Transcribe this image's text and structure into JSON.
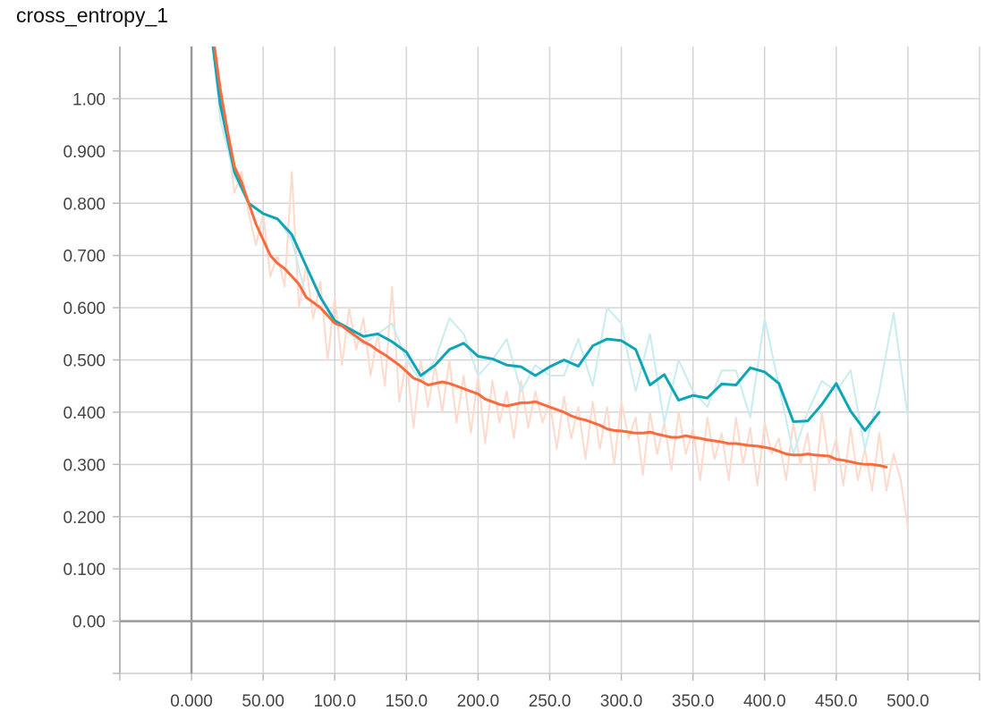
{
  "chart_data": {
    "type": "line",
    "title": "cross_entropy_1",
    "xlabel": "",
    "ylabel": "",
    "xlim": [
      -50,
      550
    ],
    "ylim": [
      -0.1,
      1.1
    ],
    "grid": true,
    "legend": "none",
    "x_ticks": [
      {
        "v": 0,
        "label": "0.000"
      },
      {
        "v": 50,
        "label": "50.00"
      },
      {
        "v": 100,
        "label": "100.0"
      },
      {
        "v": 150,
        "label": "150.0"
      },
      {
        "v": 200,
        "label": "200.0"
      },
      {
        "v": 250,
        "label": "250.0"
      },
      {
        "v": 300,
        "label": "300.0"
      },
      {
        "v": 350,
        "label": "350.0"
      },
      {
        "v": 400,
        "label": "400.0"
      },
      {
        "v": 450,
        "label": "450.0"
      },
      {
        "v": 500,
        "label": "500.0"
      }
    ],
    "y_ticks": [
      {
        "v": 0.0,
        "label": "0.00"
      },
      {
        "v": 0.1,
        "label": "0.100"
      },
      {
        "v": 0.2,
        "label": "0.200"
      },
      {
        "v": 0.3,
        "label": "0.300"
      },
      {
        "v": 0.4,
        "label": "0.400"
      },
      {
        "v": 0.5,
        "label": "0.500"
      },
      {
        "v": 0.6,
        "label": "0.600"
      },
      {
        "v": 0.7,
        "label": "0.700"
      },
      {
        "v": 0.8,
        "label": "0.800"
      },
      {
        "v": 0.9,
        "label": "0.900"
      },
      {
        "v": 1.0,
        "label": "1.00"
      }
    ],
    "series": [
      {
        "role": "orange-raw",
        "color": "#ffd9cc",
        "width": 2,
        "x": [
          15,
          20,
          25,
          30,
          35,
          40,
          45,
          50,
          55,
          60,
          65,
          70,
          75,
          80,
          85,
          90,
          95,
          100,
          105,
          110,
          115,
          120,
          125,
          130,
          135,
          140,
          145,
          150,
          155,
          160,
          165,
          170,
          175,
          180,
          185,
          190,
          195,
          200,
          205,
          210,
          215,
          220,
          225,
          230,
          235,
          240,
          245,
          250,
          255,
          260,
          265,
          270,
          275,
          280,
          285,
          290,
          295,
          300,
          305,
          310,
          315,
          320,
          325,
          330,
          335,
          340,
          345,
          350,
          355,
          360,
          365,
          370,
          375,
          380,
          385,
          390,
          395,
          400,
          405,
          410,
          415,
          420,
          425,
          430,
          435,
          440,
          445,
          450,
          455,
          460,
          465,
          470,
          475,
          480,
          485,
          490,
          495,
          500
        ],
        "y": [
          1.12,
          1.0,
          0.93,
          0.82,
          0.86,
          0.78,
          0.72,
          0.78,
          0.66,
          0.7,
          0.64,
          0.86,
          0.6,
          0.68,
          0.58,
          0.65,
          0.5,
          0.62,
          0.49,
          0.6,
          0.52,
          0.58,
          0.47,
          0.55,
          0.45,
          0.64,
          0.42,
          0.5,
          0.37,
          0.5,
          0.41,
          0.49,
          0.4,
          0.5,
          0.38,
          0.47,
          0.36,
          0.47,
          0.34,
          0.46,
          0.38,
          0.44,
          0.35,
          0.46,
          0.37,
          0.44,
          0.38,
          0.42,
          0.33,
          0.43,
          0.35,
          0.41,
          0.31,
          0.42,
          0.33,
          0.41,
          0.3,
          0.42,
          0.35,
          0.39,
          0.28,
          0.4,
          0.32,
          0.38,
          0.29,
          0.4,
          0.32,
          0.37,
          0.27,
          0.39,
          0.31,
          0.36,
          0.27,
          0.39,
          0.3,
          0.37,
          0.26,
          0.38,
          0.32,
          0.35,
          0.27,
          0.38,
          0.3,
          0.36,
          0.25,
          0.4,
          0.3,
          0.35,
          0.26,
          0.37,
          0.27,
          0.33,
          0.25,
          0.36,
          0.25,
          0.32,
          0.27,
          0.18
        ]
      },
      {
        "role": "teal-raw",
        "color": "#c8ecf0",
        "width": 2,
        "x": [
          15,
          20,
          30,
          40,
          50,
          60,
          70,
          80,
          90,
          100,
          110,
          120,
          130,
          140,
          150,
          160,
          170,
          180,
          190,
          200,
          210,
          220,
          230,
          240,
          250,
          260,
          270,
          280,
          290,
          300,
          310,
          320,
          330,
          340,
          350,
          360,
          370,
          380,
          390,
          400,
          410,
          420,
          430,
          440,
          450,
          460,
          470,
          480,
          490,
          500
        ],
        "y": [
          1.1,
          0.96,
          0.85,
          0.8,
          0.78,
          0.77,
          0.73,
          0.62,
          0.6,
          0.58,
          0.55,
          0.53,
          0.55,
          0.57,
          0.5,
          0.46,
          0.5,
          0.58,
          0.55,
          0.47,
          0.5,
          0.54,
          0.44,
          0.49,
          0.47,
          0.47,
          0.54,
          0.45,
          0.6,
          0.57,
          0.44,
          0.55,
          0.38,
          0.5,
          0.44,
          0.41,
          0.48,
          0.48,
          0.39,
          0.58,
          0.45,
          0.32,
          0.4,
          0.46,
          0.44,
          0.48,
          0.33,
          0.44,
          0.59,
          0.39
        ]
      },
      {
        "role": "teal-smoothed",
        "color": "#0ea5b8",
        "width": 3,
        "x": [
          15,
          20,
          30,
          40,
          50,
          60,
          70,
          80,
          90,
          100,
          110,
          120,
          130,
          140,
          150,
          160,
          170,
          180,
          190,
          200,
          210,
          220,
          230,
          240,
          250,
          260,
          270,
          280,
          290,
          300,
          310,
          320,
          330,
          340,
          350,
          360,
          370,
          380,
          390,
          400,
          410,
          420,
          430,
          440,
          450,
          460,
          470,
          480
        ],
        "y": [
          1.1,
          0.99,
          0.86,
          0.8,
          0.78,
          0.77,
          0.74,
          0.68,
          0.62,
          0.575,
          0.56,
          0.545,
          0.55,
          0.535,
          0.515,
          0.47,
          0.49,
          0.52,
          0.532,
          0.507,
          0.502,
          0.49,
          0.487,
          0.47,
          0.487,
          0.5,
          0.488,
          0.527,
          0.54,
          0.537,
          0.52,
          0.452,
          0.472,
          0.423,
          0.432,
          0.427,
          0.454,
          0.452,
          0.485,
          0.477,
          0.455,
          0.382,
          0.383,
          0.415,
          0.455,
          0.402,
          0.365,
          0.4
        ]
      },
      {
        "role": "orange-smoothed",
        "color": "#fa6b3c",
        "width": 3,
        "x": [
          15,
          20,
          25,
          30,
          35,
          40,
          45,
          50,
          55,
          60,
          65,
          70,
          75,
          80,
          85,
          90,
          95,
          100,
          105,
          110,
          115,
          120,
          125,
          130,
          135,
          140,
          145,
          150,
          155,
          160,
          165,
          170,
          175,
          180,
          185,
          190,
          195,
          200,
          205,
          210,
          215,
          220,
          225,
          230,
          235,
          240,
          245,
          250,
          255,
          260,
          265,
          270,
          275,
          280,
          285,
          290,
          295,
          300,
          305,
          310,
          315,
          320,
          325,
          330,
          335,
          340,
          345,
          350,
          355,
          360,
          365,
          370,
          375,
          380,
          385,
          390,
          395,
          400,
          405,
          410,
          415,
          420,
          425,
          430,
          435,
          440,
          445,
          450,
          455,
          460,
          465,
          470,
          475,
          480,
          485
        ],
        "y": [
          1.12,
          1.02,
          0.94,
          0.87,
          0.84,
          0.8,
          0.76,
          0.73,
          0.7,
          0.685,
          0.675,
          0.66,
          0.645,
          0.62,
          0.61,
          0.6,
          0.585,
          0.57,
          0.565,
          0.555,
          0.545,
          0.535,
          0.528,
          0.518,
          0.51,
          0.5,
          0.49,
          0.478,
          0.465,
          0.46,
          0.452,
          0.455,
          0.458,
          0.455,
          0.45,
          0.445,
          0.44,
          0.435,
          0.425,
          0.42,
          0.415,
          0.412,
          0.415,
          0.418,
          0.418,
          0.42,
          0.415,
          0.41,
          0.405,
          0.4,
          0.393,
          0.388,
          0.385,
          0.38,
          0.375,
          0.368,
          0.365,
          0.364,
          0.362,
          0.36,
          0.36,
          0.362,
          0.358,
          0.355,
          0.352,
          0.352,
          0.355,
          0.352,
          0.35,
          0.347,
          0.345,
          0.343,
          0.34,
          0.34,
          0.338,
          0.336,
          0.335,
          0.333,
          0.33,
          0.325,
          0.32,
          0.318,
          0.318,
          0.32,
          0.318,
          0.317,
          0.316,
          0.31,
          0.308,
          0.305,
          0.302,
          0.3,
          0.3,
          0.298,
          0.295
        ]
      }
    ]
  }
}
